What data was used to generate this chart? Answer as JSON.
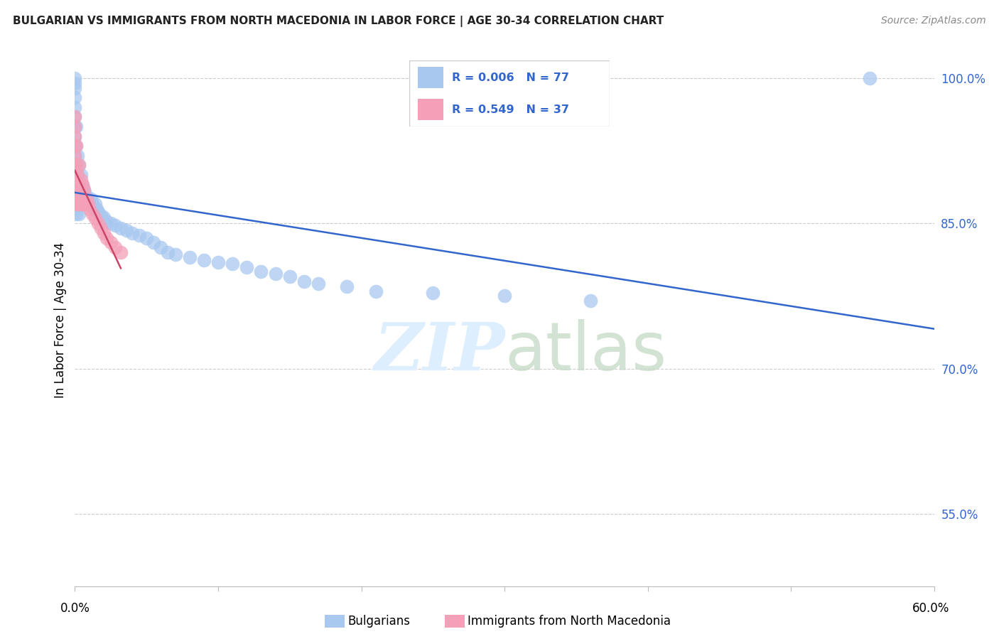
{
  "title": "BULGARIAN VS IMMIGRANTS FROM NORTH MACEDONIA IN LABOR FORCE | AGE 30-34 CORRELATION CHART",
  "source": "Source: ZipAtlas.com",
  "ylabel": "In Labor Force | Age 30-34",
  "blue_color": "#A8C8F0",
  "pink_color": "#F4A0B8",
  "blue_line_color": "#3366CC",
  "pink_line_color": "#CC4466",
  "legend_text_color": "#3366CC",
  "grid_color": "#CCCCCC",
  "watermark_color": "#DDEEFF",
  "xlim": [
    0.0,
    0.6
  ],
  "ylim": [
    0.475,
    1.025
  ],
  "yticks": [
    0.55,
    0.7,
    0.85,
    1.0
  ],
  "ytick_labels": [
    "55.0%",
    "70.0%",
    "85.0%",
    "100.0%"
  ],
  "bulgarians_x": [
    0.0,
    0.0,
    0.0,
    0.0,
    0.0,
    0.0,
    0.0,
    0.0,
    0.0,
    0.0,
    0.0,
    0.0,
    0.0,
    0.0,
    0.0,
    0.0,
    0.001,
    0.001,
    0.001,
    0.001,
    0.001,
    0.001,
    0.001,
    0.002,
    0.002,
    0.002,
    0.002,
    0.003,
    0.003,
    0.003,
    0.004,
    0.004,
    0.005,
    0.005,
    0.006,
    0.006,
    0.007,
    0.007,
    0.008,
    0.009,
    0.01,
    0.011,
    0.012,
    0.013,
    0.014,
    0.015,
    0.016,
    0.018,
    0.02,
    0.022,
    0.025,
    0.028,
    0.032,
    0.036,
    0.04,
    0.045,
    0.05,
    0.055,
    0.06,
    0.065,
    0.07,
    0.08,
    0.09,
    0.1,
    0.11,
    0.12,
    0.13,
    0.14,
    0.15,
    0.16,
    0.17,
    0.19,
    0.21,
    0.25,
    0.3,
    0.36,
    0.555
  ],
  "bulgarians_y": [
    0.88,
    0.9,
    0.91,
    0.92,
    0.93,
    0.94,
    0.95,
    0.96,
    0.97,
    0.98,
    0.99,
    0.995,
    1.0,
    0.875,
    0.87,
    0.865,
    0.86,
    0.89,
    0.91,
    0.93,
    0.95,
    0.87,
    0.885,
    0.88,
    0.9,
    0.92,
    0.87,
    0.89,
    0.91,
    0.86,
    0.88,
    0.9,
    0.87,
    0.89,
    0.87,
    0.885,
    0.87,
    0.88,
    0.87,
    0.875,
    0.87,
    0.875,
    0.87,
    0.865,
    0.87,
    0.865,
    0.862,
    0.858,
    0.856,
    0.852,
    0.85,
    0.848,
    0.845,
    0.843,
    0.84,
    0.838,
    0.835,
    0.83,
    0.825,
    0.82,
    0.818,
    0.815,
    0.812,
    0.81,
    0.808,
    0.805,
    0.8,
    0.798,
    0.795,
    0.79,
    0.788,
    0.785,
    0.78,
    0.778,
    0.775,
    0.77,
    1.0
  ],
  "macedonia_x": [
    0.0,
    0.0,
    0.0,
    0.0,
    0.0,
    0.0,
    0.0,
    0.0,
    0.0,
    0.0,
    0.001,
    0.001,
    0.001,
    0.001,
    0.002,
    0.002,
    0.003,
    0.003,
    0.004,
    0.004,
    0.005,
    0.005,
    0.006,
    0.006,
    0.007,
    0.008,
    0.009,
    0.01,
    0.012,
    0.014,
    0.016,
    0.018,
    0.02,
    0.022,
    0.025,
    0.028,
    0.032
  ],
  "macedonia_y": [
    0.87,
    0.88,
    0.89,
    0.9,
    0.91,
    0.92,
    0.93,
    0.94,
    0.95,
    0.96,
    0.87,
    0.89,
    0.91,
    0.93,
    0.87,
    0.9,
    0.88,
    0.91,
    0.87,
    0.895,
    0.87,
    0.89,
    0.87,
    0.885,
    0.87,
    0.875,
    0.87,
    0.865,
    0.86,
    0.855,
    0.85,
    0.845,
    0.84,
    0.835,
    0.83,
    0.825,
    0.82
  ]
}
